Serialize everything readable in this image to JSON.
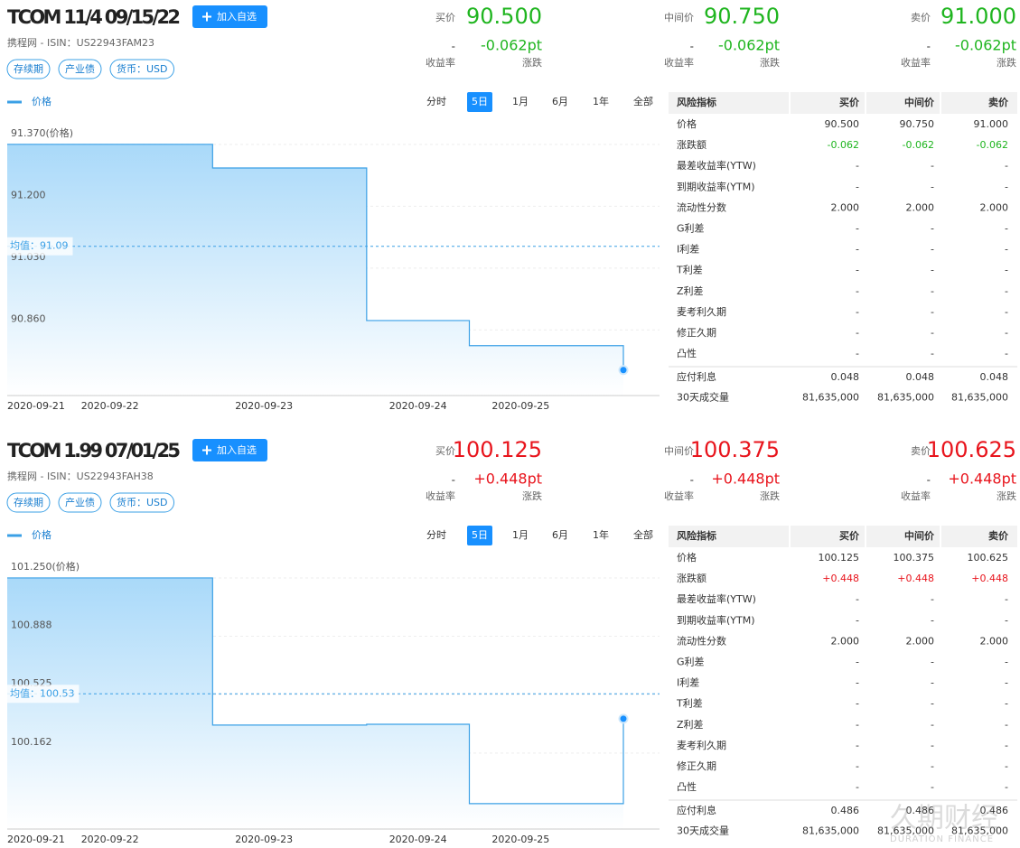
{
  "panels": [
    {
      "header": {
        "title": "TCOM 11/4 09/15/22",
        "button": "加入自选",
        "subtitle": "携程网 - ISIN：US22943FAM23",
        "tags": [
          "存续期",
          "产业债",
          "货币：USD"
        ]
      },
      "change_color": "#1fb51f",
      "quotes": [
        {
          "label": "买价",
          "price": "90.500",
          "yield": "-",
          "change": "-0.062pt",
          "yield_label": "收益率",
          "change_label": "涨跌"
        },
        {
          "label": "中间价",
          "price": "90.750",
          "yield": "-",
          "change": "-0.062pt",
          "yield_label": "收益率",
          "change_label": "涨跌"
        },
        {
          "label": "卖价",
          "price": "91.000",
          "yield": "-",
          "change": "-0.062pt",
          "yield_label": "收益率",
          "change_label": "涨跌"
        }
      ],
      "chart": {
        "type": "line",
        "legend": "价格",
        "periods": [
          "分时",
          "5日",
          "1月",
          "6月",
          "1年",
          "全部"
        ],
        "selected_period": "5日",
        "color": "#3ba0e6",
        "categories": [
          "2020-09-21",
          null,
          "2020-09-22",
          null,
          null,
          "2020-09-23",
          null,
          null,
          "2020-09-24",
          null,
          "2020-09-25",
          null,
          null
        ],
        "values": [
          91.37,
          91.37,
          91.37,
          91.37,
          91.305,
          91.305,
          91.305,
          90.886,
          90.886,
          90.817,
          90.817,
          90.817,
          90.75
        ],
        "ylim": [
          90.68,
          91.444
        ],
        "yticks": [
          {
            "value": 90.86,
            "label": "90.860"
          },
          {
            "value": 91.03,
            "label": "91.030"
          },
          {
            "value": 91.2,
            "label": "91.200"
          },
          {
            "value": 91.37,
            "label": "91.370(价格)"
          }
        ],
        "mean": {
          "value": 91.09,
          "label": "均值：91.09"
        }
      },
      "table": {
        "columns": [
          "风险指标",
          "买价",
          "中间价",
          "卖价"
        ],
        "rows": [
          [
            "价格",
            "90.500",
            "90.750",
            "91.000"
          ],
          [
            "涨跌额",
            "-0.062",
            "-0.062",
            "-0.062"
          ],
          [
            "最差收益率(YTW)",
            "-",
            "-",
            "-"
          ],
          [
            "到期收益率(YTM)",
            "-",
            "-",
            "-"
          ],
          [
            "流动性分数",
            "2.000",
            "2.000",
            "2.000"
          ],
          [
            "G利差",
            "-",
            "-",
            "-"
          ],
          [
            "I利差",
            "-",
            "-",
            "-"
          ],
          [
            "T利差",
            "-",
            "-",
            "-"
          ],
          [
            "Z利差",
            "-",
            "-",
            "-"
          ],
          [
            "麦考利久期",
            "-",
            "-",
            "-"
          ],
          [
            "修正久期",
            "-",
            "-",
            "-"
          ],
          [
            "凸性",
            "-",
            "-",
            "-"
          ],
          [
            "应付利息",
            "0.048",
            "0.048",
            "0.048"
          ],
          [
            "30天成交量",
            "81,635,000",
            "81,635,000",
            "81,635,000"
          ]
        ]
      }
    },
    {
      "header": {
        "title": "TCOM 1.99 07/01/25",
        "button": "加入自选",
        "subtitle": "携程网 - ISIN：US22943FAH38",
        "tags": [
          "存续期",
          "产业债",
          "货币：USD"
        ]
      },
      "change_color": "#e8141c",
      "quotes": [
        {
          "label": "买价",
          "price": "100.125",
          "yield": "-",
          "change": "+0.448pt",
          "yield_label": "收益率",
          "change_label": "涨跌"
        },
        {
          "label": "中间价",
          "price": "100.375",
          "yield": "-",
          "change": "+0.448pt",
          "yield_label": "收益率",
          "change_label": "涨跌"
        },
        {
          "label": "卖价",
          "price": "100.625",
          "yield": "-",
          "change": "+0.448pt",
          "yield_label": "收益率",
          "change_label": "涨跌"
        }
      ],
      "chart": {
        "type": "line",
        "legend": "价格",
        "periods": [
          "分时",
          "5日",
          "1月",
          "6月",
          "1年",
          "全部"
        ],
        "selected_period": "5日",
        "color": "#3ba0e6",
        "categories": [
          "2020-09-21",
          null,
          "2020-09-22",
          null,
          null,
          "2020-09-23",
          null,
          null,
          "2020-09-24",
          null,
          "2020-09-25",
          null,
          null
        ],
        "values": [
          101.25,
          101.25,
          101.25,
          101.25,
          100.336,
          100.336,
          100.336,
          100.341,
          100.341,
          99.848,
          99.848,
          99.848,
          100.375
        ],
        "ylim": [
          99.69,
          101.418
        ],
        "yticks": [
          {
            "value": 100.162,
            "label": "100.162"
          },
          {
            "value": 100.525,
            "label": "100.525"
          },
          {
            "value": 100.888,
            "label": "100.888"
          },
          {
            "value": 101.25,
            "label": "101.250(价格)"
          }
        ],
        "mean": {
          "value": 100.53,
          "label": "均值：100.53"
        }
      },
      "table": {
        "columns": [
          "风险指标",
          "买价",
          "中间价",
          "卖价"
        ],
        "rows": [
          [
            "价格",
            "100.125",
            "100.375",
            "100.625"
          ],
          [
            "涨跌额",
            "+0.448",
            "+0.448",
            "+0.448"
          ],
          [
            "最差收益率(YTW)",
            "-",
            "-",
            "-"
          ],
          [
            "到期收益率(YTM)",
            "-",
            "-",
            "-"
          ],
          [
            "流动性分数",
            "2.000",
            "2.000",
            "2.000"
          ],
          [
            "G利差",
            "-",
            "-",
            "-"
          ],
          [
            "I利差",
            "-",
            "-",
            "-"
          ],
          [
            "T利差",
            "-",
            "-",
            "-"
          ],
          [
            "Z利差",
            "-",
            "-",
            "-"
          ],
          [
            "麦考利久期",
            "-",
            "-",
            "-"
          ],
          [
            "修正久期",
            "-",
            "-",
            "-"
          ],
          [
            "凸性",
            "-",
            "-",
            "-"
          ],
          [
            "应付利息",
            "0.486",
            "0.486",
            "0.486"
          ],
          [
            "30天成交量",
            "81,635,000",
            "81,635,000",
            "81,635,000"
          ]
        ]
      }
    }
  ],
  "watermark": {
    "name": "久期财经",
    "sub": "DURATION FINANCE"
  }
}
